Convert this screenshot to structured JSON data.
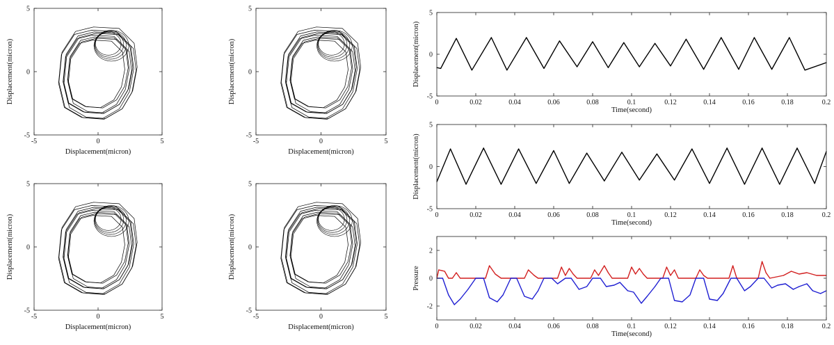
{
  "chart_data": [
    {
      "id": "orbit-1",
      "type": "line",
      "xlabel": "Displacement(micron)",
      "ylabel": "Displacement(micron)",
      "xlim": [
        -5,
        5
      ],
      "ylim": [
        -5,
        5
      ],
      "xticks": [
        -5,
        0,
        5
      ],
      "yticks": [
        -5,
        0,
        5
      ],
      "grid": false,
      "series": [
        {
          "style": "closed-orbit-loops",
          "color": "#000000",
          "x": [
            -0.3,
            1.4,
            2.4,
            2.6,
            2.3,
            1.6,
            0.4,
            -1.0,
            -2.2,
            -2.6,
            -2.4,
            -1.5,
            -0.3
          ],
          "y": [
            2.9,
            2.8,
            1.8,
            0.2,
            -1.4,
            -2.6,
            -3.3,
            -3.2,
            -2.5,
            -0.8,
            1.2,
            2.6,
            2.9
          ]
        }
      ]
    },
    {
      "id": "orbit-2",
      "type": "line",
      "xlabel": "Displacement(micron)",
      "ylabel": "Displacement(micron)",
      "xlim": [
        -5,
        5
      ],
      "ylim": [
        -5,
        5
      ],
      "xticks": [
        -5,
        0,
        5
      ],
      "yticks": [
        -5,
        0,
        5
      ],
      "grid": false,
      "series": [
        {
          "style": "closed-orbit-loops",
          "color": "#000000",
          "x": [
            -0.3,
            1.4,
            2.4,
            2.6,
            2.3,
            1.6,
            0.4,
            -1.0,
            -2.2,
            -2.6,
            -2.4,
            -1.5,
            -0.3
          ],
          "y": [
            2.9,
            2.8,
            1.8,
            0.2,
            -1.4,
            -2.6,
            -3.3,
            -3.2,
            -2.5,
            -0.8,
            1.2,
            2.6,
            2.9
          ]
        }
      ]
    },
    {
      "id": "orbit-3",
      "type": "line",
      "xlabel": "Displacement(micron)",
      "ylabel": "Displacement(micron)",
      "xlim": [
        -5,
        5
      ],
      "ylim": [
        -5,
        5
      ],
      "xticks": [
        -5,
        0,
        5
      ],
      "yticks": [
        -5,
        0,
        5
      ],
      "grid": false,
      "series": [
        {
          "style": "closed-orbit-loops",
          "color": "#000000",
          "x": [
            -0.3,
            1.4,
            2.4,
            2.6,
            2.3,
            1.6,
            0.4,
            -1.0,
            -2.2,
            -2.6,
            -2.4,
            -1.5,
            -0.3
          ],
          "y": [
            2.9,
            2.8,
            1.8,
            0.2,
            -1.4,
            -2.6,
            -3.3,
            -3.2,
            -2.5,
            -0.8,
            1.2,
            2.6,
            2.9
          ]
        }
      ]
    },
    {
      "id": "orbit-4",
      "type": "line",
      "xlabel": "Displacement(micron)",
      "ylabel": "Displacement(micron)",
      "xlim": [
        -5,
        5
      ],
      "ylim": [
        -5,
        5
      ],
      "xticks": [
        -5,
        0,
        5
      ],
      "yticks": [
        -5,
        0,
        5
      ],
      "grid": false,
      "series": [
        {
          "style": "closed-orbit-loops",
          "color": "#000000",
          "x": [
            -0.3,
            1.4,
            2.4,
            2.6,
            2.3,
            1.6,
            0.4,
            -1.0,
            -2.2,
            -2.6,
            -2.4,
            -1.5,
            -0.3
          ],
          "y": [
            2.9,
            2.8,
            1.8,
            0.2,
            -1.4,
            -2.6,
            -3.3,
            -3.2,
            -2.5,
            -0.8,
            1.2,
            2.6,
            2.9
          ]
        }
      ]
    },
    {
      "id": "time-displacement-1",
      "type": "line",
      "xlabel": "Time(second)",
      "ylabel": "Displacement(micron)",
      "xlim": [
        0,
        0.2
      ],
      "ylim": [
        -5,
        5
      ],
      "xticks": [
        "0",
        "0.02",
        "0.04",
        "0.06",
        "0.08",
        "0.1",
        "0.12",
        "0.14",
        "0.16",
        "0.18",
        "0.2"
      ],
      "yticks": [
        "-5",
        "0",
        "5"
      ],
      "grid": false,
      "series": [
        {
          "color": "#000000",
          "x": [
            0,
            0.002,
            0.01,
            0.018,
            0.028,
            0.036,
            0.046,
            0.055,
            0.063,
            0.072,
            0.08,
            0.088,
            0.096,
            0.104,
            0.112,
            0.12,
            0.128,
            0.137,
            0.146,
            0.155,
            0.163,
            0.172,
            0.181,
            0.189,
            0.2
          ],
          "y": [
            -1.6,
            -1.7,
            1.9,
            -1.9,
            2.0,
            -1.9,
            2.0,
            -1.7,
            1.6,
            -1.5,
            1.5,
            -1.6,
            1.4,
            -1.5,
            1.3,
            -1.4,
            1.8,
            -1.8,
            2.0,
            -1.8,
            2.0,
            -1.8,
            2.0,
            -1.9,
            -1.0
          ]
        }
      ]
    },
    {
      "id": "time-displacement-2",
      "type": "line",
      "xlabel": "Time(second)",
      "ylabel": "Displacement(micron)",
      "xlim": [
        0,
        0.2
      ],
      "ylim": [
        -5,
        5
      ],
      "xticks": [
        "0",
        "0.02",
        "0.04",
        "0.06",
        "0.08",
        "0.1",
        "0.12",
        "0.14",
        "0.16",
        "0.18",
        "0.2"
      ],
      "yticks": [
        "-5",
        "0",
        "5"
      ],
      "grid": false,
      "series": [
        {
          "color": "#000000",
          "x": [
            0,
            0.007,
            0.015,
            0.024,
            0.033,
            0.042,
            0.051,
            0.06,
            0.068,
            0.077,
            0.086,
            0.095,
            0.104,
            0.113,
            0.122,
            0.131,
            0.14,
            0.149,
            0.158,
            0.167,
            0.176,
            0.185,
            0.194,
            0.2
          ],
          "y": [
            -1.8,
            2.1,
            -2.1,
            2.2,
            -2.1,
            2.1,
            -2.0,
            1.9,
            -2.0,
            1.6,
            -1.7,
            1.7,
            -1.6,
            1.5,
            -1.6,
            2.1,
            -2.0,
            2.2,
            -2.1,
            2.2,
            -2.1,
            2.2,
            -2.0,
            1.8
          ]
        }
      ]
    },
    {
      "id": "pressure",
      "type": "line",
      "xlabel": "Time(second)",
      "ylabel": "Pressure",
      "xlim": [
        0,
        0.2
      ],
      "ylim": [
        -3,
        3
      ],
      "xticks": [
        "0",
        "0.02",
        "0.04",
        "0.06",
        "0.08",
        "0.1",
        "0.12",
        "0.14",
        "0.16",
        "0.18",
        "0.2"
      ],
      "yticks": [
        "-2",
        "0",
        "2"
      ],
      "grid": false,
      "series": [
        {
          "color": "#d21f1f",
          "x": [
            0,
            0.001,
            0.004,
            0.006,
            0.008,
            0.01,
            0.012,
            0.025,
            0.027,
            0.03,
            0.033,
            0.045,
            0.047,
            0.05,
            0.052,
            0.062,
            0.064,
            0.066,
            0.068,
            0.07,
            0.072,
            0.079,
            0.081,
            0.083,
            0.086,
            0.088,
            0.09,
            0.098,
            0.1,
            0.102,
            0.104,
            0.106,
            0.108,
            0.116,
            0.118,
            0.12,
            0.122,
            0.124,
            0.133,
            0.135,
            0.137,
            0.139,
            0.15,
            0.152,
            0.154,
            0.165,
            0.167,
            0.169,
            0.171,
            0.178,
            0.182,
            0.186,
            0.19,
            0.195,
            0.2
          ],
          "y": [
            0.0,
            0.6,
            0.5,
            0.0,
            0.0,
            0.4,
            0.0,
            0.0,
            0.9,
            0.3,
            0.0,
            0.0,
            0.6,
            0.2,
            0.0,
            0.0,
            0.8,
            0.2,
            0.7,
            0.3,
            0.0,
            0.0,
            0.6,
            0.2,
            0.9,
            0.4,
            0.0,
            0.0,
            0.8,
            0.3,
            0.7,
            0.3,
            0.0,
            0.0,
            0.8,
            0.2,
            0.6,
            0.0,
            0.0,
            0.6,
            0.2,
            0.0,
            0.0,
            0.9,
            0.0,
            0.0,
            1.2,
            0.4,
            0.0,
            0.2,
            0.5,
            0.3,
            0.4,
            0.2,
            0.2
          ]
        },
        {
          "color": "#1f1fd2",
          "x": [
            0,
            0.003,
            0.006,
            0.009,
            0.012,
            0.016,
            0.02,
            0.024,
            0.027,
            0.031,
            0.034,
            0.038,
            0.041,
            0.045,
            0.049,
            0.052,
            0.055,
            0.059,
            0.062,
            0.066,
            0.069,
            0.073,
            0.077,
            0.08,
            0.084,
            0.087,
            0.091,
            0.094,
            0.098,
            0.101,
            0.105,
            0.108,
            0.112,
            0.115,
            0.119,
            0.122,
            0.126,
            0.13,
            0.133,
            0.137,
            0.14,
            0.144,
            0.147,
            0.151,
            0.154,
            0.158,
            0.161,
            0.165,
            0.168,
            0.172,
            0.175,
            0.179,
            0.183,
            0.186,
            0.19,
            0.193,
            0.197,
            0.2
          ],
          "y": [
            0.0,
            0.0,
            -1.2,
            -1.9,
            -1.5,
            -0.8,
            0.0,
            0.0,
            -1.4,
            -1.7,
            -1.2,
            0.0,
            0.0,
            -1.3,
            -1.5,
            -0.9,
            0.0,
            0.0,
            -0.4,
            0.0,
            0.0,
            -0.8,
            -0.6,
            0.0,
            0.0,
            -0.6,
            -0.5,
            -0.3,
            -0.9,
            -1.0,
            -1.8,
            -1.3,
            -0.6,
            0.0,
            0.0,
            -1.6,
            -1.7,
            -1.2,
            0.0,
            0.0,
            -1.5,
            -1.6,
            -1.1,
            0.0,
            0.0,
            -0.9,
            -0.6,
            0.0,
            0.0,
            -0.7,
            -0.5,
            -0.4,
            -0.8,
            -0.6,
            -0.4,
            -0.9,
            -1.1,
            -0.9
          ]
        }
      ]
    }
  ]
}
